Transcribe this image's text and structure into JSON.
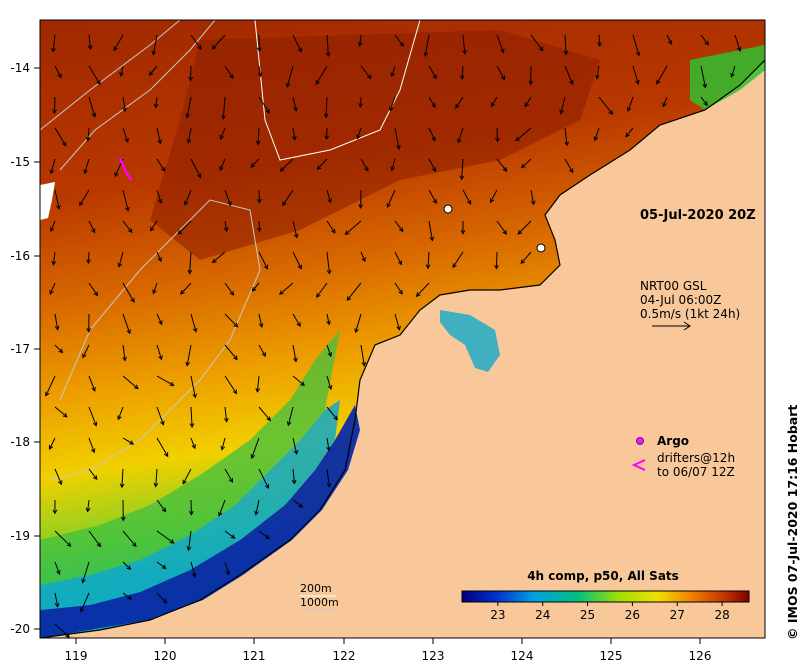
{
  "map": {
    "timestamp_label": "05-Jul-2020 20Z",
    "current_info": {
      "line1": "NRT00 GSL",
      "line2": "04-Jul 06:00Z",
      "line3": "0.5m/s (1kt 24h)"
    },
    "legend": {
      "argo_label": "Argo",
      "drifters_line1": "drifters@12h",
      "drifters_line2": "to 06/07 12Z"
    },
    "isobaths": {
      "shallow": "200m",
      "deep": "1000m"
    },
    "credit": "© IMOS 07-Jul-2020 17:16 Hobart",
    "colorbar": {
      "title": "4h comp, p50, All Sats",
      "ticks": [
        "23",
        "24",
        "25",
        "26",
        "27",
        "28"
      ],
      "range": [
        22.2,
        28.6
      ]
    },
    "x_ticks": [
      "119",
      "120",
      "121",
      "122",
      "123",
      "124",
      "125",
      "126"
    ],
    "y_ticks": [
      "-14",
      "-15",
      "-16",
      "-17",
      "-18",
      "-19",
      "-20"
    ],
    "colors": {
      "land": "#f9c89a",
      "warm": "#b03000",
      "argo": "#e020e0",
      "drifter": "#ff00ff"
    }
  }
}
